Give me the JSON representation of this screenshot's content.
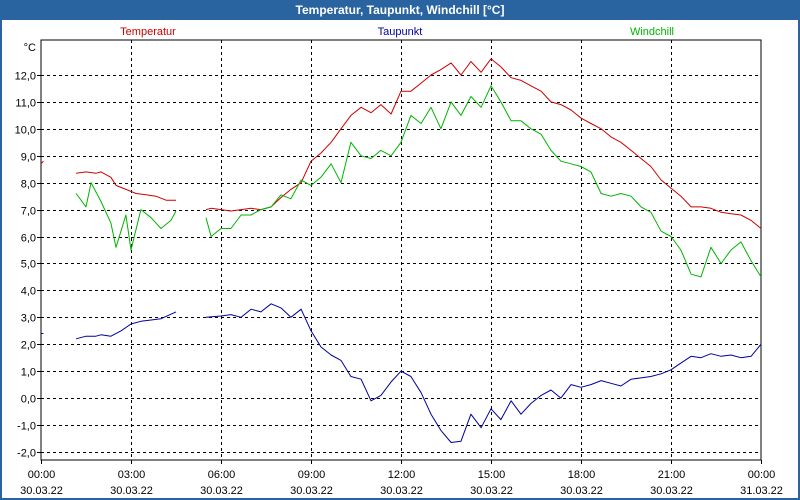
{
  "window": {
    "title": "Temperatur, Taupunkt, Windchill [°C]"
  },
  "chart_data": {
    "type": "line",
    "title": "Temperatur, Taupunkt, Windchill [°C]",
    "ylabel": "°C",
    "ylim": [
      -2.3,
      13.3
    ],
    "xlim": [
      0,
      24
    ],
    "yticks": [
      12,
      11,
      10,
      9,
      8,
      7,
      6,
      5,
      4,
      3,
      2,
      1,
      0,
      -1,
      -2
    ],
    "ytick_labels": [
      "12,0",
      "11,0",
      "10,0",
      "9,0",
      "8,0",
      "7,0",
      "6,0",
      "5,0",
      "4,0",
      "3,0",
      "2,0",
      "1,0",
      "0,0",
      "-1,0",
      "-2,0"
    ],
    "xticks": [
      {
        "x": 0,
        "time": "00:00",
        "date": "30.03.22"
      },
      {
        "x": 3,
        "time": "03:00",
        "date": "30.03.22"
      },
      {
        "x": 6,
        "time": "06:00",
        "date": "30.03.22"
      },
      {
        "x": 9,
        "time": "09:00",
        "date": "30.03.22"
      },
      {
        "x": 12,
        "time": "12:00",
        "date": "30.03.22"
      },
      {
        "x": 15,
        "time": "15:00",
        "date": "30.03.22"
      },
      {
        "x": 18,
        "time": "18:00",
        "date": "30.03.22"
      },
      {
        "x": 21,
        "time": "21:00",
        "date": "30.03.22"
      },
      {
        "x": 24,
        "time": "00:00",
        "date": "31.03.22"
      }
    ],
    "grid": true,
    "series": [
      {
        "name": "Temperatur",
        "color": "#cc0000",
        "segments": [
          [
            [
              0,
              8.7
            ],
            [
              0.08,
              8.8
            ]
          ],
          [
            [
              1.17,
              8.35
            ],
            [
              1.5,
              8.4
            ],
            [
              1.83,
              8.35
            ],
            [
              2.0,
              8.4
            ],
            [
              2.33,
              8.2
            ],
            [
              2.5,
              7.9
            ],
            [
              2.83,
              7.75
            ],
            [
              3.17,
              7.6
            ],
            [
              3.5,
              7.55
            ],
            [
              3.83,
              7.5
            ],
            [
              4.17,
              7.35
            ],
            [
              4.5,
              7.35
            ]
          ],
          [
            [
              5.5,
              7.0
            ],
            [
              5.67,
              7.05
            ],
            [
              6.0,
              7.0
            ],
            [
              6.33,
              6.95
            ],
            [
              6.67,
              7.0
            ],
            [
              7.0,
              7.05
            ],
            [
              7.33,
              7.0
            ],
            [
              7.67,
              7.1
            ],
            [
              8.0,
              7.45
            ],
            [
              8.33,
              7.75
            ],
            [
              8.67,
              8.0
            ],
            [
              9.0,
              8.8
            ],
            [
              9.33,
              9.1
            ],
            [
              9.67,
              9.5
            ],
            [
              10.0,
              10.0
            ],
            [
              10.33,
              10.5
            ],
            [
              10.67,
              10.8
            ],
            [
              11.0,
              10.6
            ],
            [
              11.33,
              10.9
            ],
            [
              11.67,
              10.55
            ],
            [
              12.0,
              11.4
            ],
            [
              12.33,
              11.4
            ],
            [
              12.67,
              11.7
            ],
            [
              13.0,
              12.0
            ],
            [
              13.33,
              12.2
            ],
            [
              13.67,
              12.45
            ],
            [
              14.0,
              12.0
            ],
            [
              14.33,
              12.5
            ],
            [
              14.67,
              12.1
            ],
            [
              15.0,
              12.6
            ],
            [
              15.33,
              12.3
            ],
            [
              15.67,
              11.9
            ],
            [
              16.0,
              11.8
            ],
            [
              16.33,
              11.6
            ],
            [
              16.67,
              11.4
            ],
            [
              17.0,
              11.0
            ],
            [
              17.33,
              10.9
            ],
            [
              17.67,
              10.7
            ],
            [
              18.0,
              10.4
            ],
            [
              18.33,
              10.2
            ],
            [
              18.67,
              10.0
            ],
            [
              19.0,
              9.7
            ],
            [
              19.33,
              9.5
            ],
            [
              19.67,
              9.2
            ],
            [
              20.0,
              8.9
            ],
            [
              20.33,
              8.6
            ],
            [
              20.67,
              8.1
            ],
            [
              21.0,
              7.8
            ],
            [
              21.33,
              7.5
            ],
            [
              21.67,
              7.1
            ],
            [
              22.0,
              7.1
            ],
            [
              22.33,
              7.05
            ],
            [
              22.67,
              6.9
            ],
            [
              23.0,
              6.85
            ],
            [
              23.33,
              6.8
            ],
            [
              23.67,
              6.6
            ],
            [
              24.0,
              6.3
            ]
          ]
        ]
      },
      {
        "name": "Taupunkt",
        "color": "#00009c",
        "segments": [
          [
            [
              0,
              2.4
            ],
            [
              0.08,
              2.4
            ]
          ],
          [
            [
              1.17,
              2.2
            ],
            [
              1.5,
              2.3
            ],
            [
              1.83,
              2.3
            ],
            [
              2.0,
              2.35
            ],
            [
              2.33,
              2.3
            ],
            [
              2.67,
              2.5
            ],
            [
              3.0,
              2.75
            ],
            [
              3.33,
              2.85
            ],
            [
              3.67,
              2.9
            ],
            [
              4.0,
              2.95
            ],
            [
              4.5,
              3.2
            ]
          ],
          [
            [
              5.5,
              3.0
            ],
            [
              6.0,
              3.05
            ],
            [
              6.33,
              3.1
            ],
            [
              6.67,
              3.0
            ],
            [
              7.0,
              3.3
            ],
            [
              7.33,
              3.2
            ],
            [
              7.67,
              3.5
            ],
            [
              8.0,
              3.35
            ],
            [
              8.33,
              3.0
            ],
            [
              8.67,
              3.3
            ],
            [
              9.0,
              2.5
            ],
            [
              9.33,
              1.9
            ],
            [
              9.67,
              1.6
            ],
            [
              10.0,
              1.4
            ],
            [
              10.33,
              0.8
            ],
            [
              10.67,
              0.7
            ],
            [
              11.0,
              -0.1
            ],
            [
              11.33,
              0.1
            ],
            [
              11.67,
              0.6
            ],
            [
              12.0,
              1.0
            ],
            [
              12.33,
              0.8
            ],
            [
              12.67,
              0.2
            ],
            [
              13.0,
              -0.6
            ],
            [
              13.33,
              -1.2
            ],
            [
              13.67,
              -1.65
            ],
            [
              14.0,
              -1.6
            ],
            [
              14.33,
              -0.6
            ],
            [
              14.67,
              -1.1
            ],
            [
              15.0,
              -0.4
            ],
            [
              15.33,
              -0.8
            ],
            [
              15.67,
              -0.1
            ],
            [
              16.0,
              -0.6
            ],
            [
              16.33,
              -0.2
            ],
            [
              16.67,
              0.1
            ],
            [
              17.0,
              0.3
            ],
            [
              17.33,
              0.0
            ],
            [
              17.67,
              0.5
            ],
            [
              18.0,
              0.4
            ],
            [
              18.33,
              0.5
            ],
            [
              18.67,
              0.65
            ],
            [
              19.0,
              0.55
            ],
            [
              19.33,
              0.45
            ],
            [
              19.67,
              0.7
            ],
            [
              20.0,
              0.75
            ],
            [
              20.33,
              0.8
            ],
            [
              20.67,
              0.9
            ],
            [
              21.0,
              1.05
            ],
            [
              21.33,
              1.3
            ],
            [
              21.67,
              1.55
            ],
            [
              22.0,
              1.5
            ],
            [
              22.33,
              1.65
            ],
            [
              22.67,
              1.55
            ],
            [
              23.0,
              1.6
            ],
            [
              23.33,
              1.5
            ],
            [
              23.67,
              1.55
            ],
            [
              24.0,
              2.0
            ]
          ]
        ]
      },
      {
        "name": "Windchill",
        "color": "#00b400",
        "segments": [
          [
            [
              1.17,
              7.6
            ],
            [
              1.5,
              7.1
            ],
            [
              1.67,
              8.0
            ],
            [
              2.0,
              7.3
            ],
            [
              2.33,
              6.5
            ],
            [
              2.5,
              5.6
            ],
            [
              2.83,
              6.8
            ],
            [
              3.0,
              5.5
            ],
            [
              3.33,
              7.0
            ],
            [
              3.67,
              6.7
            ],
            [
              4.0,
              6.3
            ],
            [
              4.33,
              6.6
            ],
            [
              4.5,
              6.95
            ]
          ],
          [
            [
              5.5,
              6.7
            ],
            [
              5.67,
              6.0
            ],
            [
              6.0,
              6.3
            ],
            [
              6.33,
              6.3
            ],
            [
              6.67,
              6.8
            ],
            [
              7.0,
              6.8
            ],
            [
              7.33,
              7.0
            ],
            [
              7.67,
              7.1
            ],
            [
              8.0,
              7.55
            ],
            [
              8.33,
              7.4
            ],
            [
              8.67,
              8.1
            ],
            [
              9.0,
              7.9
            ],
            [
              9.33,
              8.2
            ],
            [
              9.67,
              8.7
            ],
            [
              10.0,
              8.0
            ],
            [
              10.33,
              9.5
            ],
            [
              10.67,
              9.0
            ],
            [
              11.0,
              8.9
            ],
            [
              11.33,
              9.2
            ],
            [
              11.67,
              9.0
            ],
            [
              12.0,
              9.5
            ],
            [
              12.33,
              10.5
            ],
            [
              12.67,
              10.2
            ],
            [
              13.0,
              10.8
            ],
            [
              13.33,
              10.0
            ],
            [
              13.67,
              11.0
            ],
            [
              14.0,
              10.5
            ],
            [
              14.33,
              11.2
            ],
            [
              14.67,
              10.8
            ],
            [
              15.0,
              11.6
            ],
            [
              15.33,
              11.0
            ],
            [
              15.67,
              10.3
            ],
            [
              16.0,
              10.3
            ],
            [
              16.33,
              10.0
            ],
            [
              16.67,
              9.8
            ],
            [
              17.0,
              9.2
            ],
            [
              17.33,
              8.8
            ],
            [
              17.67,
              8.7
            ],
            [
              18.0,
              8.6
            ],
            [
              18.33,
              8.4
            ],
            [
              18.67,
              7.6
            ],
            [
              19.0,
              7.5
            ],
            [
              19.33,
              7.6
            ],
            [
              19.67,
              7.5
            ],
            [
              20.0,
              7.1
            ],
            [
              20.33,
              6.9
            ],
            [
              20.67,
              6.2
            ],
            [
              21.0,
              6.0
            ],
            [
              21.33,
              5.5
            ],
            [
              21.67,
              4.6
            ],
            [
              22.0,
              4.5
            ],
            [
              22.33,
              5.6
            ],
            [
              22.67,
              5.0
            ],
            [
              23.0,
              5.5
            ],
            [
              23.33,
              5.8
            ],
            [
              23.67,
              5.1
            ],
            [
              24.0,
              4.5
            ]
          ]
        ]
      }
    ]
  }
}
